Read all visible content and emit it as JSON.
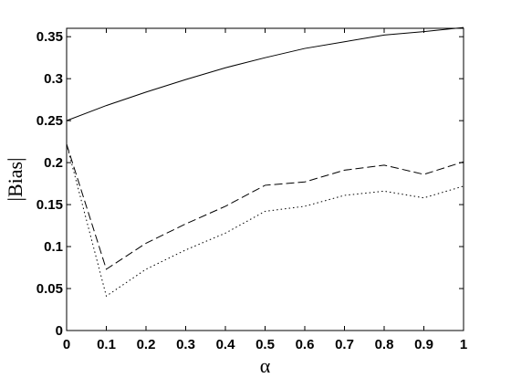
{
  "chart_data": {
    "type": "line",
    "title": "",
    "xlabel": "α",
    "ylabel": "|Bias|",
    "xlim": [
      0,
      1
    ],
    "ylim": [
      0,
      0.36
    ],
    "xticks": [
      "0",
      "0.1",
      "0.2",
      "0.3",
      "0.4",
      "0.5",
      "0.6",
      "0.7",
      "0.8",
      "0.9",
      "1"
    ],
    "yticks": [
      "0",
      "0.05",
      "0.1",
      "0.15",
      "0.2",
      "0.25",
      "0.3",
      "0.35"
    ],
    "grid": false,
    "legend": "none",
    "x": [
      0,
      0.1,
      0.2,
      0.3,
      0.4,
      0.5,
      0.6,
      0.7,
      0.8,
      0.9,
      1.0
    ],
    "series": [
      {
        "style": "solid",
        "color": "#000000",
        "values": [
          0.25,
          0.268,
          0.284,
          0.299,
          0.313,
          0.325,
          0.336,
          0.344,
          0.352,
          0.356,
          0.361
        ]
      },
      {
        "style": "dashed",
        "color": "#000000",
        "values": [
          0.222,
          0.073,
          0.104,
          0.127,
          0.148,
          0.173,
          0.177,
          0.191,
          0.197,
          0.186,
          0.201
        ]
      },
      {
        "style": "dotted",
        "color": "#000000",
        "values": [
          0.222,
          0.041,
          0.073,
          0.096,
          0.116,
          0.142,
          0.148,
          0.161,
          0.166,
          0.158,
          0.172
        ]
      }
    ]
  }
}
